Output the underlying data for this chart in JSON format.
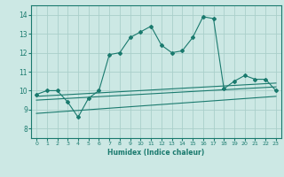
{
  "xlabel": "Humidex (Indice chaleur)",
  "ylabel": "",
  "bg_color": "#cce8e4",
  "line_color": "#1a7a6e",
  "grid_color": "#aacfca",
  "xlim": [
    -0.5,
    23.5
  ],
  "ylim": [
    7.5,
    14.5
  ],
  "xticks": [
    0,
    1,
    2,
    3,
    4,
    5,
    6,
    7,
    8,
    9,
    10,
    11,
    12,
    13,
    14,
    15,
    16,
    17,
    18,
    19,
    20,
    21,
    22,
    23
  ],
  "yticks": [
    8,
    9,
    10,
    11,
    12,
    13,
    14
  ],
  "line1_x": [
    0,
    1,
    2,
    3,
    4,
    5,
    6,
    7,
    8,
    9,
    10,
    11,
    12,
    13,
    14,
    15,
    16,
    17,
    18,
    19,
    20,
    21,
    22,
    23
  ],
  "line1_y": [
    9.8,
    10.0,
    10.0,
    9.4,
    8.6,
    9.6,
    10.0,
    11.9,
    12.0,
    12.8,
    13.1,
    13.4,
    12.4,
    12.0,
    12.1,
    12.8,
    13.9,
    13.8,
    10.1,
    10.5,
    10.8,
    10.6,
    10.6,
    10.0
  ],
  "line2_x": [
    0,
    23
  ],
  "line2_y": [
    9.7,
    10.4
  ],
  "line3_x": [
    0,
    23
  ],
  "line3_y": [
    9.5,
    10.2
  ],
  "line4_x": [
    0,
    23
  ],
  "line4_y": [
    8.8,
    9.7
  ]
}
